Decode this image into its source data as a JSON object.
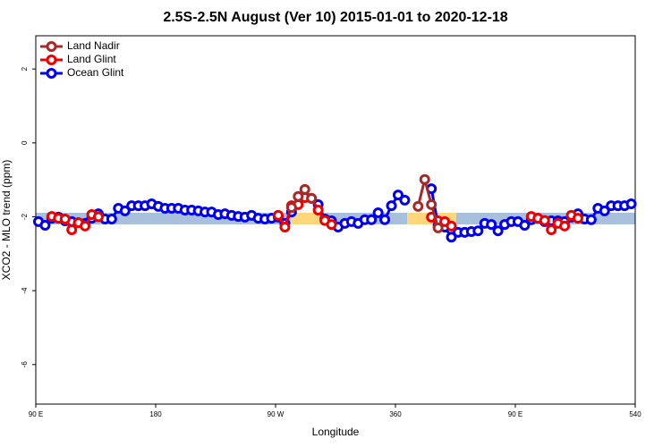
{
  "chart_data": {
    "type": "line",
    "title": "2.5S-2.5N August (Ver 10)   2015-01-01 to 2020-12-18",
    "x_label": "Longitude",
    "y_label": "XCO2 - MLO trend (ppm)",
    "xlim": [
      90,
      540
    ],
    "ylim": [
      -7.07,
      2.9
    ],
    "xticks": [
      {
        "value": 90,
        "label": "90 E"
      },
      180,
      {
        "value": 270,
        "label": "90 W"
      },
      360,
      {
        "value": 450,
        "label": "90 E"
      },
      540
    ],
    "yticks": [
      -6,
      -4,
      -2,
      0,
      2
    ],
    "legend": "top-left",
    "x": [
      92,
      97,
      102,
      107,
      112,
      117,
      122,
      127,
      132,
      137,
      142,
      147,
      152,
      157,
      162,
      167,
      172,
      177,
      182,
      187,
      192,
      197,
      202,
      207,
      212,
      217,
      222,
      227,
      232,
      237,
      242,
      247,
      252,
      257,
      262,
      267,
      272,
      277,
      282,
      287,
      292,
      297,
      302,
      307,
      312,
      317,
      322,
      327,
      332,
      337,
      342,
      347,
      352,
      357,
      362,
      367,
      372,
      377,
      382,
      387,
      392,
      397,
      402,
      407,
      412,
      417,
      422,
      427,
      432,
      437,
      442,
      447,
      452,
      457,
      462,
      467,
      472,
      477,
      482,
      487,
      492,
      497,
      502,
      507,
      512,
      517,
      522,
      527,
      532,
      537
    ],
    "series": [
      {
        "name": "Land Nadir",
        "color": "#a52a2a",
        "values": [
          null,
          null,
          null,
          null,
          null,
          null,
          null,
          null,
          null,
          null,
          null,
          null,
          null,
          null,
          null,
          null,
          null,
          null,
          null,
          null,
          null,
          null,
          null,
          null,
          null,
          null,
          null,
          null,
          null,
          null,
          null,
          null,
          null,
          null,
          null,
          null,
          null,
          null,
          -1.75,
          -1.45,
          -1.26,
          -1.5,
          null,
          null,
          null,
          null,
          null,
          null,
          null,
          null,
          null,
          null,
          null,
          null,
          null,
          null,
          null,
          -1.72,
          -0.99,
          -1.67,
          -2.3,
          null,
          null,
          null,
          null,
          null,
          null,
          null,
          null,
          null,
          null,
          null,
          null,
          null,
          null,
          null,
          null,
          null,
          null,
          null,
          null,
          null,
          null,
          null,
          null,
          null,
          null,
          null,
          null,
          null
        ]
      },
      {
        "name": "Land Glint",
        "color": "#ee0000",
        "values": [
          null,
          null,
          -1.99,
          -2.04,
          -2.06,
          -2.35,
          -2.16,
          -2.25,
          -1.94,
          -2.0,
          null,
          null,
          null,
          null,
          null,
          null,
          null,
          null,
          null,
          null,
          null,
          null,
          null,
          null,
          null,
          null,
          null,
          null,
          null,
          null,
          null,
          null,
          null,
          null,
          null,
          null,
          -1.96,
          -2.28,
          -1.7,
          -1.67,
          -1.48,
          -1.5,
          -1.82,
          -2.1,
          -2.21,
          null,
          null,
          null,
          null,
          null,
          null,
          null,
          null,
          null,
          null,
          null,
          null,
          null,
          null,
          -2.01,
          -2.11,
          -2.13,
          -2.25,
          null,
          null,
          null,
          null,
          null,
          null,
          null,
          null,
          null,
          null,
          null,
          -1.99,
          -2.04,
          -2.1,
          -2.35,
          -2.18,
          -2.25,
          -1.96,
          -2.04,
          null,
          null,
          null,
          null,
          null,
          null,
          null,
          null
        ]
      },
      {
        "name": "Ocean Glint",
        "color": "#0000ee",
        "values": [
          -2.13,
          -2.23,
          -2.04,
          -2.01,
          -2.11,
          -2.13,
          -2.16,
          -2.18,
          -2.04,
          -1.92,
          -2.06,
          -2.06,
          -1.77,
          -1.84,
          -1.7,
          -1.7,
          -1.7,
          -1.65,
          -1.72,
          -1.77,
          -1.77,
          -1.77,
          -1.82,
          -1.82,
          -1.84,
          -1.87,
          -1.87,
          -1.94,
          -1.92,
          -1.96,
          -1.99,
          -2.01,
          -1.96,
          -2.04,
          -2.06,
          -2.04,
          -2.01,
          -2.18,
          -1.87,
          null,
          null,
          null,
          -1.67,
          -2.06,
          -2.11,
          -2.28,
          -2.18,
          -2.13,
          -2.18,
          -2.08,
          -2.08,
          -1.89,
          -2.08,
          -1.7,
          -1.41,
          -1.55,
          null,
          null,
          null,
          -1.24,
          -2.23,
          -2.28,
          -2.55,
          -2.42,
          -2.42,
          -2.4,
          -2.38,
          -2.18,
          -2.21,
          -2.38,
          -2.21,
          -2.13,
          -2.13,
          -2.23,
          -2.08,
          -2.04,
          -2.13,
          -2.11,
          -2.11,
          -2.13,
          -2.01,
          -1.92,
          -2.06,
          -2.08,
          -1.77,
          -1.84,
          -1.7,
          -1.7,
          -1.7,
          -1.65
        ]
      }
    ]
  }
}
